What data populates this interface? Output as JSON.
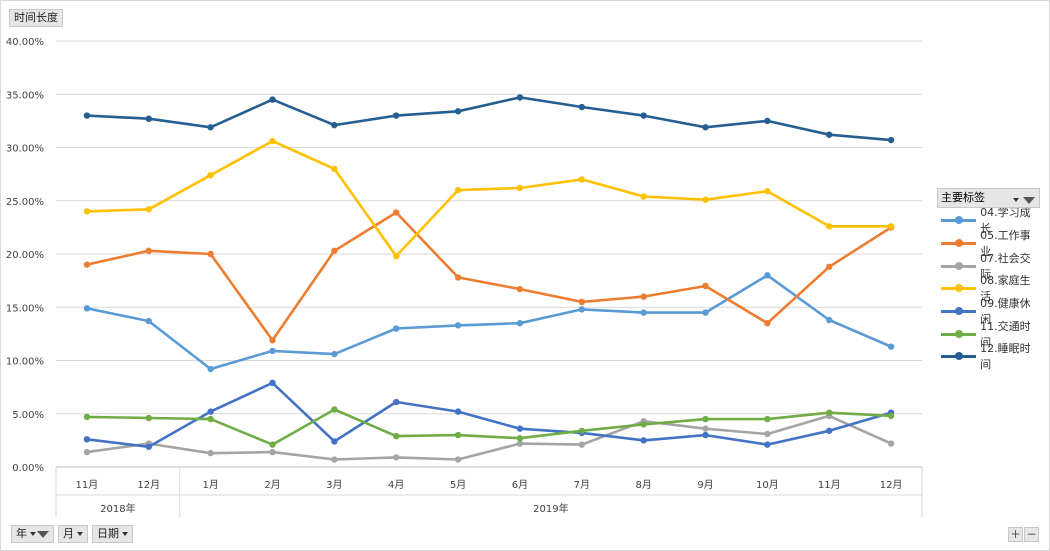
{
  "header": {
    "field_label": "时间长度"
  },
  "legend": {
    "title": "主要标签"
  },
  "filters": [
    {
      "label": "年"
    },
    {
      "label": "月"
    },
    {
      "label": "日期"
    }
  ],
  "zoom": {
    "plus": "+",
    "minus": "−"
  },
  "chart_data": {
    "type": "line",
    "ylim": [
      0,
      40
    ],
    "y_tick_labels": [
      "0.00%",
      "5.00%",
      "10.00%",
      "15.00%",
      "20.00%",
      "25.00%",
      "30.00%",
      "35.00%",
      "40.00%"
    ],
    "categories": [
      "11月",
      "12月",
      "1月",
      "2月",
      "3月",
      "4月",
      "5月",
      "6月",
      "7月",
      "8月",
      "9月",
      "10月",
      "11月",
      "12月"
    ],
    "year_groups": [
      {
        "label": "2018年",
        "span": 2
      },
      {
        "label": "2019年",
        "span": 12
      }
    ],
    "grid": true,
    "legend_position": "right",
    "series": [
      {
        "name": "04.学习成长",
        "color": "#5b9bd5",
        "values": [
          14.9,
          13.7,
          9.2,
          10.9,
          10.6,
          13.0,
          13.3,
          13.5,
          14.8,
          14.5,
          14.5,
          18.0,
          13.8,
          11.3
        ]
      },
      {
        "name": "05.工作事业",
        "color": "#ed7d31",
        "values": [
          19.0,
          20.3,
          20.0,
          11.9,
          20.3,
          23.9,
          17.8,
          16.7,
          15.5,
          16.0,
          17.0,
          13.5,
          18.8,
          22.5
        ]
      },
      {
        "name": "07.社会交际",
        "color": "#a5a5a5",
        "values": [
          1.4,
          2.2,
          1.3,
          1.4,
          0.7,
          0.9,
          0.7,
          2.2,
          2.1,
          4.3,
          3.6,
          3.1,
          4.8,
          2.2
        ]
      },
      {
        "name": "08.家庭生活",
        "color": "#ffc000",
        "values": [
          24.0,
          24.2,
          27.4,
          30.6,
          28.0,
          19.8,
          26.0,
          26.2,
          27.0,
          25.4,
          25.1,
          25.9,
          22.6,
          22.6
        ]
      },
      {
        "name": "09.健康休闲",
        "color": "#4472c4",
        "values": [
          2.6,
          1.9,
          5.2,
          7.9,
          2.4,
          6.1,
          5.2,
          3.6,
          3.2,
          2.5,
          3.0,
          2.1,
          3.4,
          5.1
        ]
      },
      {
        "name": "11.交通时间",
        "color": "#70ad47",
        "values": [
          4.7,
          4.6,
          4.5,
          2.1,
          5.4,
          2.9,
          3.0,
          2.7,
          3.4,
          4.0,
          4.5,
          4.5,
          5.1,
          4.8
        ]
      },
      {
        "name": "12.睡眠时间",
        "color": "#255e91",
        "values": [
          33.0,
          32.7,
          31.9,
          34.5,
          32.1,
          33.0,
          33.4,
          34.7,
          33.8,
          33.0,
          31.9,
          32.5,
          31.2,
          30.7
        ]
      }
    ]
  }
}
